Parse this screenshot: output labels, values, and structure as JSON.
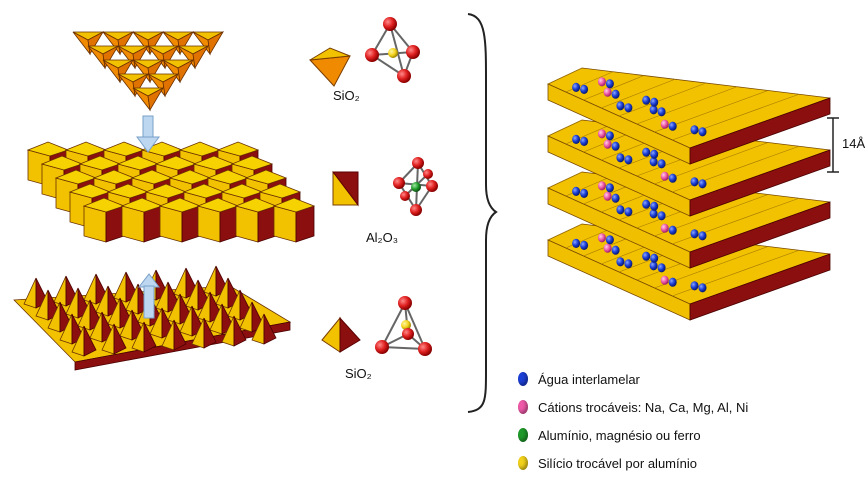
{
  "labels": {
    "formula_top": "SiO₂",
    "formula_middle": "Al₂O₃",
    "formula_bottom": "SiO₂",
    "layer_spacing": "14Å"
  },
  "legend": {
    "items": [
      {
        "label": "Água interlamelar",
        "color": "#1c3fd6",
        "icon": "blue-sphere-icon"
      },
      {
        "label": "Cátions trocáveis: Na, Ca, Mg, Al, Ni",
        "color": "#ee5aa8",
        "icon": "pink-sphere-icon"
      },
      {
        "label": "Alumínio, magnésio ou ferro",
        "color": "#1f9a2a",
        "icon": "green-sphere-icon"
      },
      {
        "label": "Silício trocável por alumínio",
        "color": "#f2d21b",
        "icon": "yellow-sphere-icon"
      }
    ]
  },
  "colors": {
    "tetra_yellow": "#f2c200",
    "tetra_orange": "#f08a00",
    "octa_red": "#8b0f0f",
    "atom_red": "#e02020",
    "arrow_blue": "#bcd7ef"
  }
}
